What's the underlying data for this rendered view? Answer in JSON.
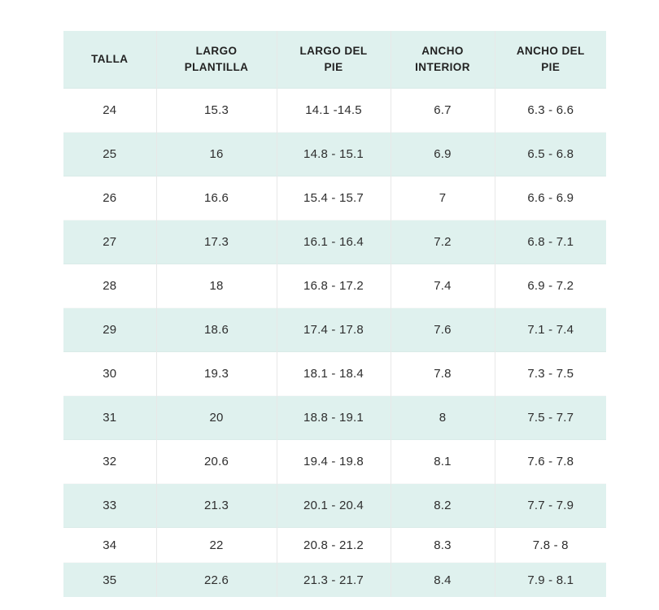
{
  "colors": {
    "background": "#ffffff",
    "row_accent": "#dff1ee",
    "text": "#2e2e2e",
    "header_text": "#222222",
    "divider": "#e8e8e8"
  },
  "chart_data": {
    "type": "table",
    "columns": [
      "TALLA",
      "LARGO PLANTILLA",
      "LARGO DEL PIE",
      "ANCHO INTERIOR",
      "ANCHO DEL PIE"
    ],
    "rows": [
      [
        "24",
        "15.3",
        "14.1 -14.5",
        "6.7",
        "6.3 - 6.6"
      ],
      [
        "25",
        "16",
        "14.8 - 15.1",
        "6.9",
        "6.5 - 6.8"
      ],
      [
        "26",
        "16.6",
        "15.4 - 15.7",
        "7",
        "6.6 - 6.9"
      ],
      [
        "27",
        "17.3",
        "16.1 - 16.4",
        "7.2",
        "6.8 - 7.1"
      ],
      [
        "28",
        "18",
        "16.8 - 17.2",
        "7.4",
        "6.9 - 7.2"
      ],
      [
        "29",
        "18.6",
        "17.4 - 17.8",
        "7.6",
        "7.1 - 7.4"
      ],
      [
        "30",
        "19.3",
        "18.1 - 18.4",
        "7.8",
        "7.3 - 7.5"
      ],
      [
        "31",
        "20",
        "18.8 - 19.1",
        "8",
        "7.5 - 7.7"
      ],
      [
        "32",
        "20.6",
        "19.4 - 19.8",
        "8.1",
        "7.6 - 7.8"
      ],
      [
        "33",
        "21.3",
        "20.1 - 20.4",
        "8.2",
        "7.7 - 7.9"
      ],
      [
        "34",
        "22",
        "20.8 - 21.2",
        "8.3",
        "7.8 - 8"
      ],
      [
        "35",
        "22.6",
        "21.3 - 21.7",
        "8.4",
        "7.9 - 8.1"
      ]
    ]
  }
}
